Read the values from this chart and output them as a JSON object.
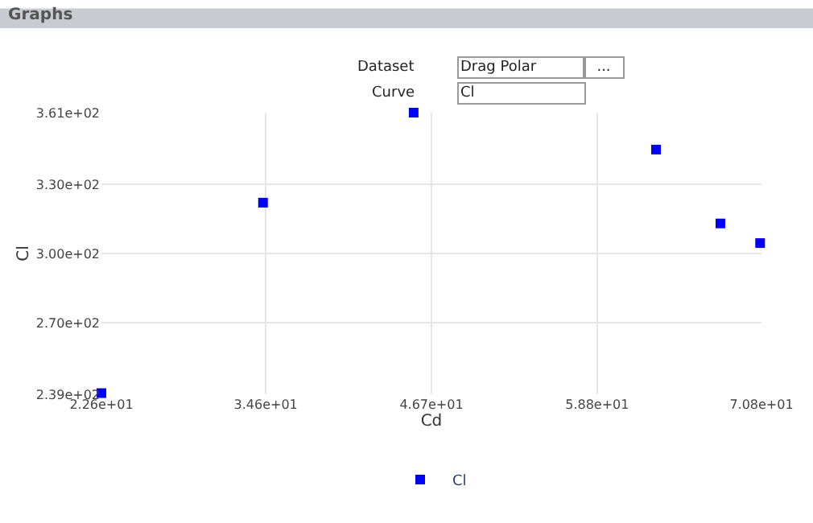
{
  "chart_data": {
    "type": "scatter",
    "title": "Graphs",
    "annotations": [
      "Dataset",
      "Drag Polar",
      "...",
      "Curve",
      "Cl"
    ],
    "xlabel": "Cd",
    "ylabel": "Cl",
    "x": [
      22.6,
      34.4,
      45.4,
      63.1,
      67.8,
      70.7
    ],
    "series": [
      {
        "name": "Cl",
        "color": "#0000ff",
        "values": [
          239.5,
          322,
          361,
          345,
          313,
          304.5
        ]
      }
    ],
    "xlim": [
      22.6,
      70.8
    ],
    "ylim": [
      239,
      361
    ],
    "xticks": [
      {
        "value": 22.6,
        "label": "2.26e+01"
      },
      {
        "value": 34.6,
        "label": "3.46e+01"
      },
      {
        "value": 46.7,
        "label": "4.67e+01"
      },
      {
        "value": 58.8,
        "label": "5.88e+01"
      },
      {
        "value": 70.8,
        "label": "7.08e+01"
      }
    ],
    "yticks": [
      {
        "value": 239,
        "label": "2.39e+02"
      },
      {
        "value": 270,
        "label": "2.70e+02"
      },
      {
        "value": 300,
        "label": "3.00e+02"
      },
      {
        "value": 330,
        "label": "3.30e+02"
      },
      {
        "value": 361,
        "label": "3.61e+02"
      }
    ],
    "grid": true,
    "legend": "bottom",
    "marker": "square"
  }
}
